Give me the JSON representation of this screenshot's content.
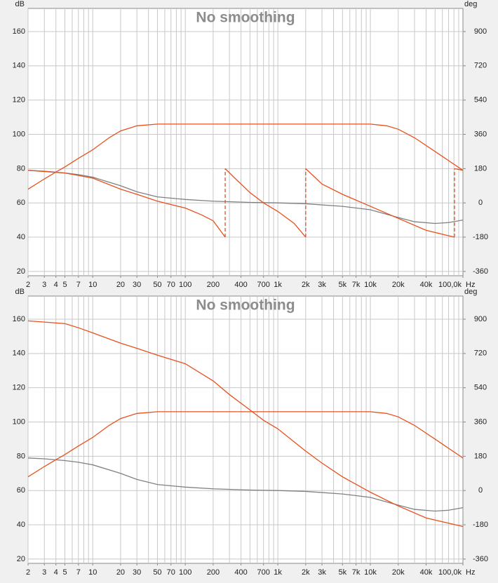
{
  "chart_data": [
    {
      "type": "line",
      "title": "No smoothing",
      "y_label": "dB",
      "y2_label": "deg",
      "x_label": "Hz",
      "log_x": true,
      "grid": true,
      "xlim": [
        2,
        100000
      ],
      "ylim": [
        17.5,
        173.5
      ],
      "y2lim": [
        -382.5,
        1021.5
      ],
      "yticks": [
        20,
        40,
        60,
        80,
        100,
        120,
        140,
        160
      ],
      "y2ticks": [
        -360,
        -180,
        0,
        180,
        360,
        540,
        720,
        900
      ],
      "xticks": [
        2,
        3,
        4,
        5,
        7,
        10,
        20,
        30,
        50,
        70,
        100,
        200,
        400,
        700,
        {
          "value": 1000,
          "label": "1k"
        },
        {
          "value": 2000,
          "label": "2k"
        },
        {
          "value": 3000,
          "label": "3k"
        },
        {
          "value": 5000,
          "label": "5k"
        },
        {
          "value": 7000,
          "label": "7k"
        },
        {
          "value": 10000,
          "label": "10k"
        },
        {
          "value": 20000,
          "label": "20k"
        },
        {
          "value": 40000,
          "label": "40k"
        },
        {
          "value": 100000,
          "label": "100,0k"
        }
      ],
      "xgrid": [
        2,
        3,
        4,
        5,
        6,
        7,
        8,
        9,
        10,
        20,
        30,
        40,
        50,
        60,
        70,
        80,
        90,
        100,
        200,
        300,
        400,
        500,
        600,
        700,
        800,
        900,
        1000,
        2000,
        3000,
        4000,
        5000,
        6000,
        7000,
        8000,
        9000,
        10000,
        20000,
        30000,
        40000,
        50000,
        60000,
        70000,
        80000,
        90000
      ],
      "series": [
        {
          "color": "#e8501c",
          "x": [
            2,
            3,
            4,
            5,
            7,
            10,
            15,
            20,
            30,
            50,
            100,
            1000,
            10000,
            15000,
            20000,
            30000,
            50000,
            100000
          ],
          "values": [
            68,
            74,
            78,
            81,
            86,
            91,
            98,
            102,
            105,
            106,
            106,
            106,
            106,
            105,
            103,
            98,
            90,
            79
          ]
        },
        {
          "color": "#808080",
          "x": [
            2,
            3,
            5,
            7,
            10,
            20,
            30,
            50,
            100,
            200,
            500,
            1000,
            2000,
            5000,
            10000,
            20000,
            30000,
            50000,
            70000,
            100000
          ],
          "values": [
            79,
            78.5,
            77.5,
            76.5,
            75,
            70,
            66.5,
            63.5,
            62,
            61,
            60.3,
            60,
            59.5,
            58,
            56,
            51.5,
            49,
            48,
            48.5,
            50
          ]
        },
        {
          "color": "#e8501c",
          "axis": "y2",
          "x": [
            2,
            5,
            10,
            20,
            30,
            50,
            100,
            150,
            200,
            270,
            270,
            350,
            500,
            700,
            1000,
            1500,
            2000,
            2000,
            3000,
            5000,
            10000,
            20000,
            40000,
            81000,
            81000,
            100000
          ],
          "values": [
            171,
            157,
            130,
            72,
            45,
            9,
            -27,
            -63,
            -94,
            -180,
            180,
            126,
            54,
            0,
            -45,
            -108,
            -180,
            180,
            99,
            45,
            -18,
            -81,
            -144,
            -180,
            180,
            171
          ]
        }
      ]
    },
    {
      "type": "line",
      "title": "No smoothing",
      "y_label": "dB",
      "y2_label": "deg",
      "x_label": "Hz",
      "log_x": true,
      "grid": true,
      "xlim": [
        2,
        100000
      ],
      "ylim": [
        17.5,
        173.5
      ],
      "y2lim": [
        -382.5,
        1021.5
      ],
      "yticks": [
        20,
        40,
        60,
        80,
        100,
        120,
        140,
        160
      ],
      "y2ticks": [
        -360,
        -180,
        0,
        180,
        360,
        540,
        720,
        900
      ],
      "xticks": [
        2,
        3,
        4,
        5,
        7,
        10,
        20,
        30,
        50,
        70,
        100,
        200,
        400,
        700,
        {
          "value": 1000,
          "label": "1k"
        },
        {
          "value": 2000,
          "label": "2k"
        },
        {
          "value": 3000,
          "label": "3k"
        },
        {
          "value": 5000,
          "label": "5k"
        },
        {
          "value": 7000,
          "label": "7k"
        },
        {
          "value": 10000,
          "label": "10k"
        },
        {
          "value": 20000,
          "label": "20k"
        },
        {
          "value": 40000,
          "label": "40k"
        },
        {
          "value": 100000,
          "label": "100,0k"
        }
      ],
      "xgrid": [
        2,
        3,
        4,
        5,
        6,
        7,
        8,
        9,
        10,
        20,
        30,
        40,
        50,
        60,
        70,
        80,
        90,
        100,
        200,
        300,
        400,
        500,
        600,
        700,
        800,
        900,
        1000,
        2000,
        3000,
        4000,
        5000,
        6000,
        7000,
        8000,
        9000,
        10000,
        20000,
        30000,
        40000,
        50000,
        60000,
        70000,
        80000,
        90000
      ],
      "series": [
        {
          "color": "#e8501c",
          "x": [
            2,
            3,
            4,
            5,
            7,
            10,
            15,
            20,
            30,
            50,
            100,
            1000,
            10000,
            15000,
            20000,
            30000,
            50000,
            100000
          ],
          "values": [
            68,
            74,
            78,
            81,
            86,
            91,
            98,
            102,
            105,
            106,
            106,
            106,
            106,
            105,
            103,
            98,
            90,
            79
          ]
        },
        {
          "color": "#808080",
          "x": [
            2,
            3,
            5,
            7,
            10,
            20,
            30,
            50,
            100,
            200,
            500,
            1000,
            2000,
            5000,
            10000,
            20000,
            30000,
            50000,
            70000,
            100000
          ],
          "values": [
            79,
            78.5,
            77.5,
            76.5,
            75,
            70,
            66.5,
            63.5,
            62,
            61,
            60.3,
            60,
            59.5,
            58,
            56,
            51.5,
            49,
            48,
            48.5,
            50
          ]
        },
        {
          "color": "#e8501c",
          "axis": "y2",
          "x": [
            2,
            5,
            7,
            10,
            20,
            30,
            50,
            100,
            200,
            300,
            500,
            700,
            1000,
            2000,
            3000,
            5000,
            10000,
            20000,
            40000,
            100000
          ],
          "values": [
            891,
            877,
            855,
            828,
            774,
            747,
            711,
            666,
            576,
            504,
            423,
            369,
            324,
            207,
            144,
            72,
            -9,
            -81,
            -144,
            -189
          ]
        }
      ]
    }
  ]
}
